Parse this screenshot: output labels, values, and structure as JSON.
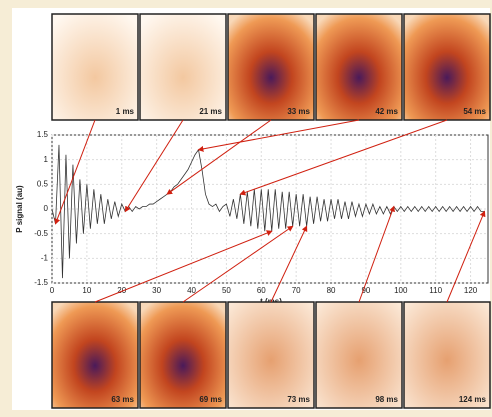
{
  "chart_data": {
    "type": "line",
    "xlabel": "t (ms)",
    "ylabel": "P signal (au)",
    "xlim": [
      0,
      125
    ],
    "xticks": [
      0,
      10,
      20,
      30,
      40,
      50,
      60,
      70,
      80,
      90,
      100,
      110,
      120
    ],
    "ylim": [
      -1.5,
      1.5
    ],
    "yticks": [
      -1.5,
      -1,
      -0.5,
      0,
      0.5,
      1,
      1.5
    ],
    "grid": true,
    "x": [
      0,
      1,
      2,
      3,
      4,
      5,
      6,
      7,
      8,
      9,
      10,
      11,
      12,
      13,
      14,
      15,
      16,
      17,
      18,
      19,
      20,
      21,
      22,
      23,
      24,
      25,
      26,
      27,
      28,
      29,
      30,
      31,
      32,
      33,
      34,
      35,
      36,
      37,
      38,
      39,
      40,
      41,
      42,
      43,
      44,
      45,
      46,
      47,
      48,
      49,
      50,
      51,
      52,
      53,
      54,
      55,
      56,
      57,
      58,
      59,
      60,
      61,
      62,
      63,
      64,
      65,
      66,
      67,
      68,
      69,
      70,
      71,
      72,
      73,
      74,
      75,
      76,
      77,
      78,
      79,
      80,
      81,
      82,
      83,
      84,
      85,
      86,
      87,
      88,
      89,
      90,
      91,
      92,
      93,
      94,
      95,
      96,
      97,
      98,
      99,
      100,
      101,
      102,
      103,
      104,
      105,
      106,
      107,
      108,
      109,
      110,
      111,
      112,
      113,
      114,
      115,
      116,
      117,
      118,
      119,
      120,
      121,
      122,
      123,
      124
    ],
    "series": [
      {
        "color": "#333333",
        "values": [
          0,
          -0.3,
          1.3,
          -1.4,
          1.1,
          -1.0,
          0.9,
          -0.7,
          0.6,
          -0.5,
          0.5,
          -0.4,
          0.4,
          -0.3,
          0.3,
          -0.3,
          0.2,
          -0.2,
          0.15,
          -0.15,
          0.1,
          -0.05,
          0.05,
          -0.05,
          0.05,
          0,
          0.05,
          0.05,
          0.1,
          0.1,
          0.15,
          0.2,
          0.25,
          0.3,
          0.35,
          0.45,
          0.5,
          0.6,
          0.7,
          0.8,
          0.95,
          1.1,
          1.2,
          0.8,
          0.3,
          0.1,
          0.05,
          0.1,
          -0.05,
          0.05,
          0.1,
          -0.15,
          0.2,
          -0.2,
          0.3,
          -0.3,
          0.35,
          -0.35,
          0.4,
          -0.4,
          0.4,
          -0.45,
          0.4,
          -0.45,
          0.4,
          -0.4,
          0.35,
          -0.4,
          0.35,
          -0.35,
          0.3,
          -0.35,
          0.3,
          -0.35,
          0.25,
          -0.3,
          0.25,
          -0.25,
          0.2,
          -0.25,
          0.2,
          -0.2,
          0.2,
          -0.2,
          0.15,
          -0.2,
          0.15,
          -0.15,
          0.1,
          -0.15,
          0.1,
          -0.1,
          0.1,
          -0.1,
          0.05,
          -0.1,
          0.05,
          -0.1,
          0.05,
          -0.05,
          0.05,
          -0.05,
          0.05,
          -0.05,
          0.05,
          -0.05,
          0.05,
          -0.05,
          0.05,
          -0.05,
          0.05,
          -0.05,
          0.05,
          -0.05,
          0.05,
          -0.05,
          0.05,
          -0.05,
          0.05,
          -0.05,
          0.05,
          -0.05,
          0.05,
          -0.05,
          -0.05
        ]
      }
    ],
    "annotations": [
      {
        "label": "1 ms",
        "x": 1
      },
      {
        "label": "21 ms",
        "x": 21
      },
      {
        "label": "33 ms",
        "x": 33
      },
      {
        "label": "42 ms",
        "x": 42
      },
      {
        "label": "54 ms",
        "x": 54
      },
      {
        "label": "63 ms",
        "x": 63
      },
      {
        "label": "69 ms",
        "x": 69
      },
      {
        "label": "73 ms",
        "x": 73
      },
      {
        "label": "98 ms",
        "x": 98
      },
      {
        "label": "124 ms",
        "x": 124
      }
    ]
  }
}
